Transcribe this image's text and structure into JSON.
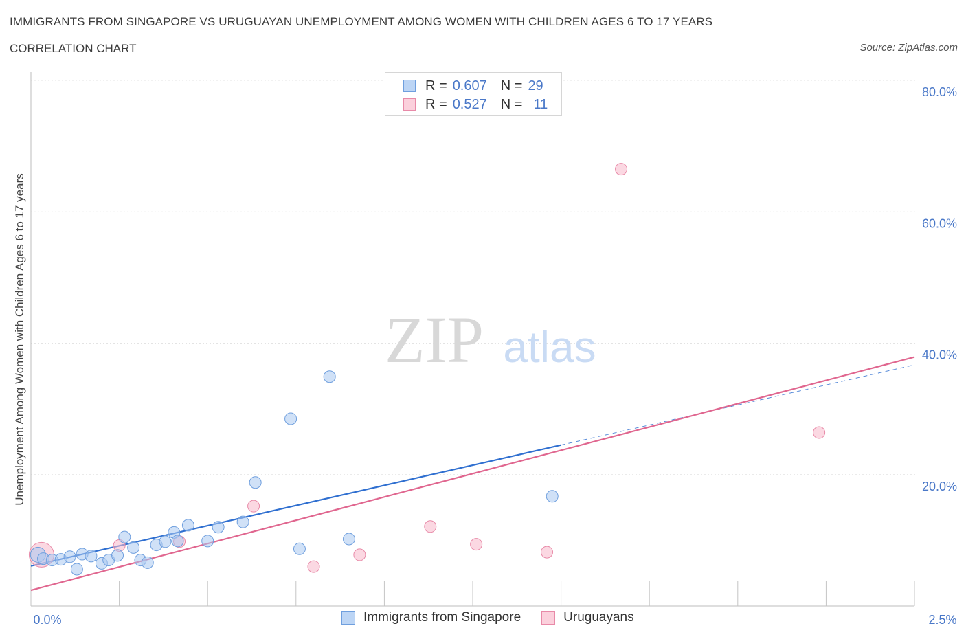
{
  "header": {
    "title": "IMMIGRANTS FROM SINGAPORE VS URUGUAYAN UNEMPLOYMENT AMONG WOMEN WITH CHILDREN AGES 6 TO 17 YEARS",
    "subtitle": "CORRELATION CHART",
    "source": "Source: ZipAtlas.com"
  },
  "watermark": {
    "zip": "ZIP",
    "atlas": "atlas"
  },
  "legend": {
    "rows": [
      {
        "r_label": "R =",
        "r_value": "0.607",
        "n_label": "N =",
        "n_value": "29"
      },
      {
        "r_label": "R =",
        "r_value": "0.527",
        "n_label": "N =",
        "n_value": "11"
      }
    ]
  },
  "bottom_legend": {
    "series1": "Immigrants from Singapore",
    "series2": "Uruguayans"
  },
  "colors": {
    "blue_fill": "#a9c8f0",
    "blue_stroke": "#6f9fde",
    "blue_line": "#2f6fd0",
    "pink_fill": "#f7b8cb",
    "pink_stroke": "#e88aa8",
    "pink_line": "#e0668f",
    "grid": "#e3e3e3",
    "axis_label": "#4a78c8"
  },
  "chart_data": {
    "type": "scatter",
    "title": "IMMIGRANTS FROM SINGAPORE VS URUGUAYAN UNEMPLOYMENT AMONG WOMEN WITH CHILDREN AGES 6 TO 17 YEARS",
    "xlabel": "",
    "ylabel": "Unemployment Among Women with Children Ages 6 to 17 years",
    "xlim": [
      0,
      2.5
    ],
    "ylim": [
      0,
      80
    ],
    "x_tick_labels": [
      "0.0%",
      "2.5%"
    ],
    "y_ticks": [
      20,
      40,
      60,
      80
    ],
    "y_tick_labels": [
      "20.0%",
      "40.0%",
      "60.0%",
      "80.0%"
    ],
    "series": [
      {
        "name": "Immigrants from Singapore",
        "R": 0.607,
        "N": 29,
        "points": [
          [
            0.02,
            7.8
          ],
          [
            0.035,
            7.2
          ],
          [
            0.06,
            7.0
          ],
          [
            0.085,
            7.1
          ],
          [
            0.11,
            7.5
          ],
          [
            0.13,
            5.6
          ],
          [
            0.145,
            7.9
          ],
          [
            0.17,
            7.6
          ],
          [
            0.2,
            6.5
          ],
          [
            0.22,
            7.0
          ],
          [
            0.245,
            7.7
          ],
          [
            0.265,
            10.5
          ],
          [
            0.29,
            8.9
          ],
          [
            0.31,
            7.0
          ],
          [
            0.33,
            6.6
          ],
          [
            0.355,
            9.3
          ],
          [
            0.38,
            9.8
          ],
          [
            0.405,
            11.2
          ],
          [
            0.415,
            9.9
          ],
          [
            0.445,
            12.3
          ],
          [
            0.5,
            9.9
          ],
          [
            0.53,
            12.0
          ],
          [
            0.6,
            12.8
          ],
          [
            0.635,
            18.8
          ],
          [
            0.735,
            28.5
          ],
          [
            0.76,
            8.7
          ],
          [
            0.845,
            34.9
          ],
          [
            0.9,
            10.2
          ],
          [
            1.475,
            16.7
          ]
        ],
        "trend": {
          "x0": 0.0,
          "y0": 6.1,
          "x1": 1.5,
          "y1": 24.5,
          "dashed_to_x": 2.5,
          "dashed_to_y": 36.7
        }
      },
      {
        "name": "Uruguayans",
        "R": 0.527,
        "N": 11,
        "points": [
          [
            0.03,
            7.8
          ],
          [
            0.25,
            9.2
          ],
          [
            0.42,
            9.8
          ],
          [
            0.63,
            15.2
          ],
          [
            0.8,
            6.0
          ],
          [
            0.93,
            7.8
          ],
          [
            1.13,
            12.1
          ],
          [
            1.26,
            9.4
          ],
          [
            1.46,
            8.2
          ],
          [
            1.67,
            66.5
          ],
          [
            2.23,
            26.4
          ]
        ],
        "trend": {
          "x0": 0.0,
          "y0": 2.4,
          "x1": 2.5,
          "y1": 37.9
        }
      }
    ]
  }
}
